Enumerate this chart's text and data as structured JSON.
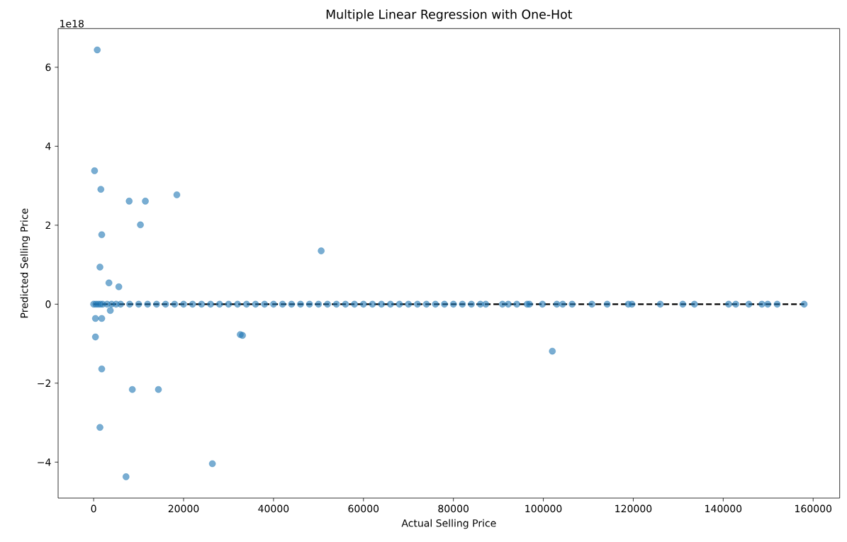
{
  "chart_data": {
    "type": "scatter",
    "title": "Multiple Linear Regression with One-Hot",
    "xlabel": "Actual Selling Price",
    "ylabel": "Predicted Selling Price",
    "annotations": [
      "1e18"
    ],
    "xlim": [
      -7900,
      165900
    ],
    "ylim": [
      -4.91,
      6.98
    ],
    "xticks": [
      0,
      20000,
      40000,
      60000,
      80000,
      100000,
      120000,
      140000,
      160000
    ],
    "yticks": [
      {
        "value": -4,
        "label": "−4"
      },
      {
        "value": -2,
        "label": "−2"
      },
      0,
      2,
      4,
      6
    ],
    "grid": false,
    "series": [
      {
        "color": "#1f77b4",
        "marker": "circle",
        "x": [
          0,
          500,
          1000,
          1500,
          2000,
          3000,
          4000,
          5000,
          6000,
          8000,
          10000,
          12000,
          14000,
          16000,
          18000,
          20000,
          22000,
          24000,
          26000,
          28000,
          30000,
          32000,
          34000,
          36000,
          38000,
          40000,
          42000,
          44000,
          46000,
          48000,
          50000,
          52000,
          54000,
          56000,
          58000,
          60000,
          62000,
          64000,
          66000,
          68000,
          70000,
          72000,
          74000,
          76000,
          78000,
          80000,
          82000,
          84000,
          86000,
          87200,
          90900,
          92200,
          94100,
          96400,
          96900,
          99800,
          103000,
          104300,
          106400,
          110800,
          114200,
          118900,
          119700,
          126000,
          131000,
          133600,
          141200,
          142800,
          145700,
          148600,
          149900,
          152000,
          158000,
          800,
          200,
          1600,
          7900,
          11500,
          18500,
          10400,
          1800,
          1400,
          3400,
          5600,
          3700,
          400,
          1800,
          400,
          1800,
          8600,
          14400,
          1400,
          7200,
          26400,
          32600,
          33100,
          50600,
          102000
        ],
        "values": [
          0,
          0,
          0,
          0,
          0,
          0,
          0,
          0,
          0,
          0,
          0,
          0,
          0,
          0,
          0,
          0,
          0,
          0,
          0,
          0,
          0,
          0,
          0,
          0,
          0,
          0,
          0,
          0,
          0,
          0,
          0,
          0,
          0,
          0,
          0,
          0,
          0,
          0,
          0,
          0,
          0,
          0,
          0,
          0,
          0,
          0,
          0,
          0,
          0,
          0,
          0,
          0,
          0,
          0,
          0,
          0,
          0,
          0,
          0,
          0,
          0,
          0,
          0,
          0,
          0,
          0,
          0,
          0,
          0,
          0,
          0,
          0,
          0,
          6.44,
          3.38,
          2.91,
          2.61,
          2.61,
          2.77,
          2.01,
          1.76,
          0.94,
          0.54,
          0.44,
          -0.16,
          -0.36,
          -0.36,
          -0.83,
          -1.64,
          -2.16,
          -2.16,
          -3.12,
          -4.37,
          -4.04,
          -0.77,
          -0.79,
          1.35,
          -1.19
        ]
      },
      {
        "type": "line",
        "color": "#000000",
        "line_style": "dashed",
        "marker": "none",
        "x": [
          0,
          158000
        ],
        "values": [
          0,
          0
        ]
      }
    ]
  }
}
